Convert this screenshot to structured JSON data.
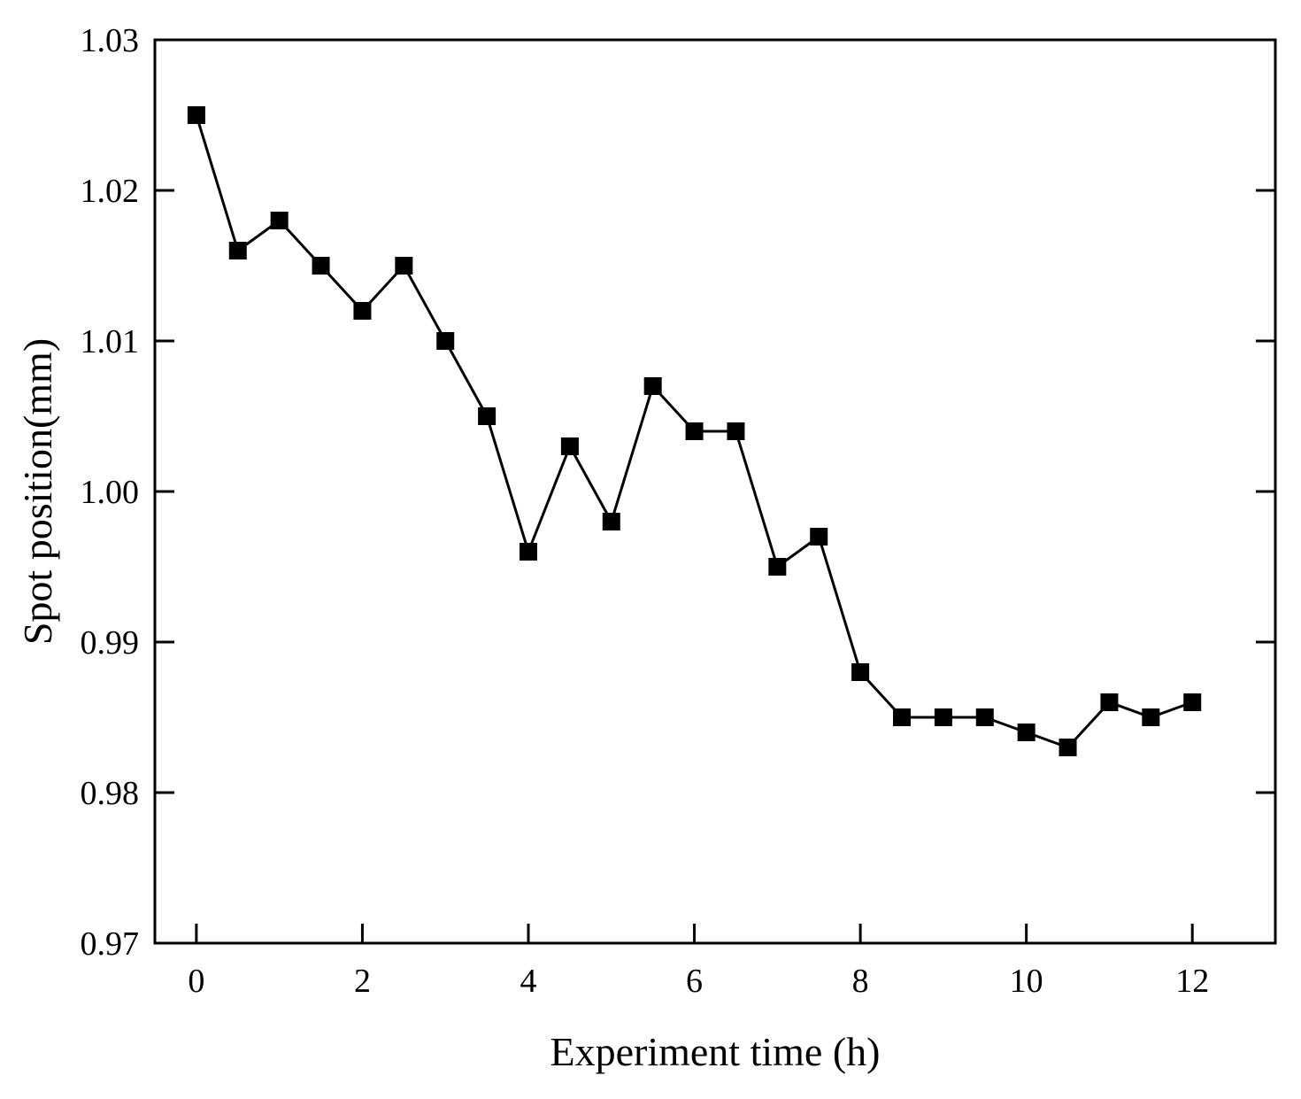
{
  "chart_data": {
    "type": "line",
    "title": "",
    "xlabel": "Experiment time (h)",
    "ylabel": "Spot position(mm)",
    "xlim": [
      -0.5,
      13
    ],
    "ylim": [
      0.97,
      1.03
    ],
    "x_ticks": [
      0,
      2,
      4,
      6,
      8,
      10,
      12
    ],
    "x_tick_labels": [
      "0",
      "2",
      "4",
      "6",
      "8",
      "10",
      "12"
    ],
    "y_ticks": [
      0.97,
      0.98,
      0.99,
      1.0,
      1.01,
      1.02,
      1.03
    ],
    "y_tick_labels": [
      "0.97",
      "0.98",
      "0.99",
      "1.00",
      "1.01",
      "1.02",
      "1.03"
    ],
    "grid": false,
    "series": [
      {
        "name": "Spot position",
        "marker": "square",
        "color": "#000000",
        "x": [
          0,
          0.5,
          1,
          1.5,
          2,
          2.5,
          3,
          3.5,
          4,
          4.5,
          5,
          5.5,
          6,
          6.5,
          7,
          7.5,
          8,
          8.5,
          9,
          9.5,
          10,
          10.5,
          11,
          11.5,
          12
        ],
        "y": [
          1.025,
          1.016,
          1.018,
          1.015,
          1.012,
          1.015,
          1.01,
          1.005,
          0.996,
          1.003,
          0.998,
          1.007,
          1.004,
          1.004,
          0.995,
          0.997,
          0.988,
          0.985,
          0.985,
          0.985,
          0.984,
          0.983,
          0.986,
          0.985,
          0.986
        ]
      }
    ]
  }
}
